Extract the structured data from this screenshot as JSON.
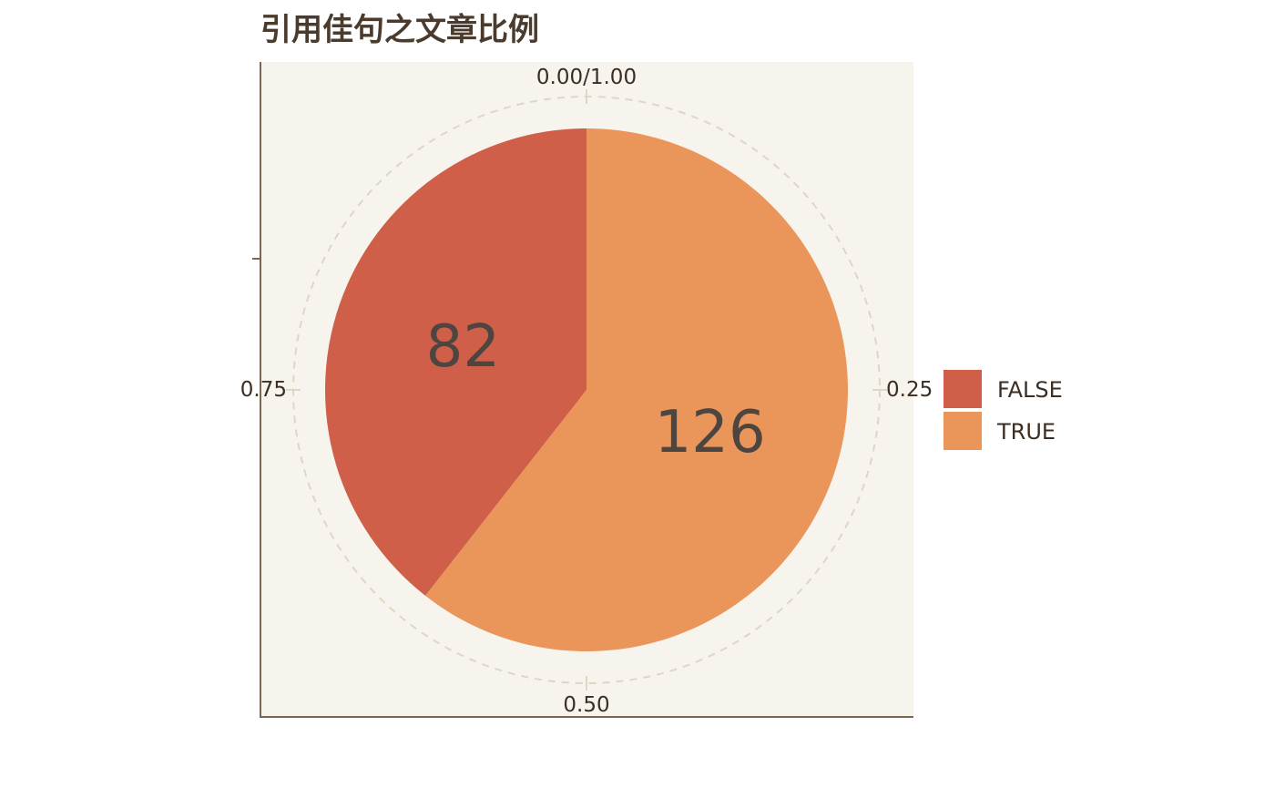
{
  "chart_data": {
    "type": "pie",
    "title": "引用佳句之文章比例",
    "categories": [
      "FALSE",
      "TRUE"
    ],
    "values": [
      82,
      126
    ],
    "colors": [
      "#d05f4a",
      "#ea965a"
    ],
    "theta_ticks": [
      "0.00/1.00",
      "0.25",
      "0.50",
      "0.75"
    ],
    "theta_tick_values": [
      0,
      0.25,
      0.5,
      0.75
    ],
    "direction": "clockwise",
    "start": "top",
    "legend": {
      "position": "right",
      "entries": [
        "FALSE",
        "TRUE"
      ]
    },
    "panel_background": "#f7f4ed",
    "grid_color": "#dcd8c6",
    "axis_color": "#7a6651"
  }
}
